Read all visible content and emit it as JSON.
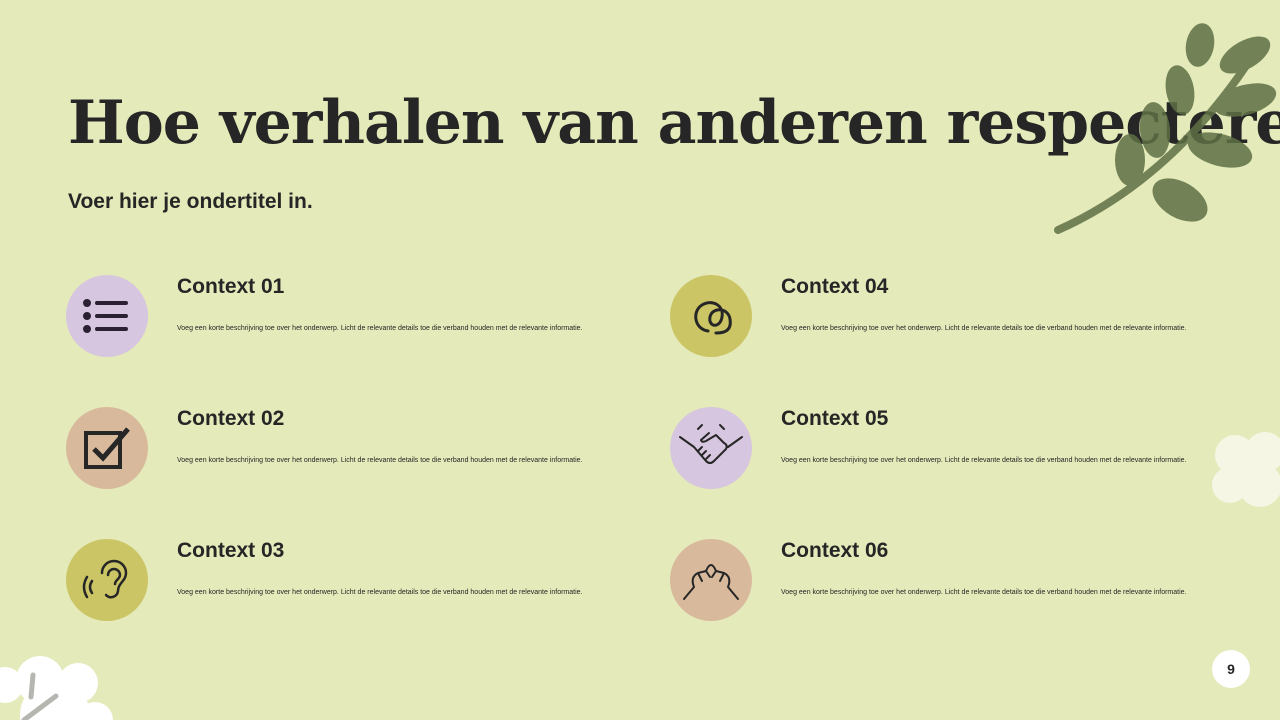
{
  "title": "Hoe verhalen van anderen respecteren",
  "subtitle": "Voer hier je ondertitel in.",
  "colors": {
    "background": "#e4eab9",
    "purple": "#d6c6df",
    "tan": "#d9b99c",
    "olive": "#cbc565",
    "leaf": "#5f7145"
  },
  "items": [
    {
      "title": "Context 01",
      "text": "Voeg een korte beschrijving toe over het onderwerp. Licht de relevante details toe die verband houden met de relevante informatie.",
      "icon": "list-icon"
    },
    {
      "title": "Context 02",
      "text": "Voeg een korte beschrijving toe over het onderwerp. Licht de relevante details toe die verband houden met de relevante informatie.",
      "icon": "checkbox-icon"
    },
    {
      "title": "Context 03",
      "text": "Voeg een korte beschrijving toe over het onderwerp. Licht de relevante details toe die verband houden met de relevante informatie.",
      "icon": "ear-icon"
    },
    {
      "title": "Context 04",
      "text": "Voeg een korte beschrijving toe over het onderwerp. Licht de relevante details toe die verband houden met de relevante informatie.",
      "icon": "intertwined-circles-icon"
    },
    {
      "title": "Context 05",
      "text": "Voeg een korte beschrijving toe over het onderwerp. Licht de relevante details toe die verband houden met de relevante informatie.",
      "icon": "handshake-icon"
    },
    {
      "title": "Context 06",
      "text": "Voeg een korte beschrijving toe over het onderwerp. Licht de relevante details toe die verband houden met de relevante informatie.",
      "icon": "pinky-promise-icon"
    }
  ],
  "page_number": "9"
}
